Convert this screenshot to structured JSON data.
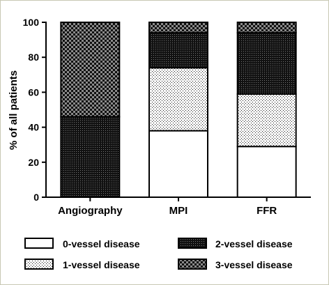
{
  "chart_data": {
    "type": "bar",
    "stacked": true,
    "categories": [
      "Angiography",
      "MPI",
      "FFR"
    ],
    "series": [
      {
        "name": "0-vessel disease",
        "values": [
          0,
          38,
          29
        ],
        "pattern": "white"
      },
      {
        "name": "1-vessel disease",
        "values": [
          0,
          36,
          30
        ],
        "pattern": "sparse-dots"
      },
      {
        "name": "2-vessel disease",
        "values": [
          46,
          20,
          35
        ],
        "pattern": "dense-dots"
      },
      {
        "name": "3-vessel disease",
        "values": [
          54,
          6,
          6
        ],
        "pattern": "checker"
      }
    ],
    "ylabel": "% of all patients",
    "xlabel": "",
    "title": "",
    "ylim": [
      0,
      100
    ],
    "yticks": [
      0,
      20,
      40,
      60,
      80,
      100
    ],
    "grid": false,
    "legend_position": "bottom",
    "legend_order": [
      "0-vessel disease",
      "2-vessel disease",
      "1-vessel disease",
      "3-vessel disease"
    ]
  }
}
